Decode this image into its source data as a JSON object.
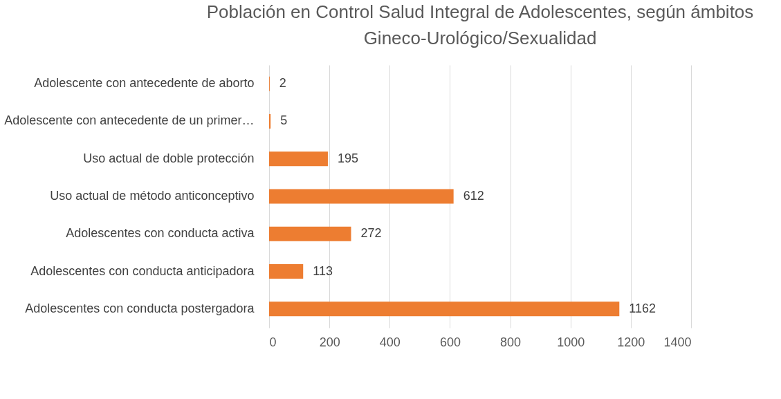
{
  "chart_data": {
    "type": "bar",
    "orientation": "horizontal",
    "title": "Población en Control Salud Integral de Adolescentes, según ámbitos\nGineco-Urológico/Sexualidad",
    "categories": [
      "Adolescente con antecedente de aborto",
      "Adolescente con antecedente de un primer…",
      "Uso actual de doble protección",
      "Uso actual de método anticonceptivo",
      "Adolescentes con conducta activa",
      "Adolescentes con conducta anticipadora",
      "Adolescentes con conducta postergadora"
    ],
    "values": [
      2,
      5,
      195,
      612,
      272,
      113,
      1162
    ],
    "color": "#ed7d31",
    "xlim": [
      0,
      1400
    ],
    "xticks": [
      0,
      200,
      400,
      600,
      800,
      1000,
      1200,
      1400
    ],
    "grid": "x",
    "data_labels": true
  }
}
